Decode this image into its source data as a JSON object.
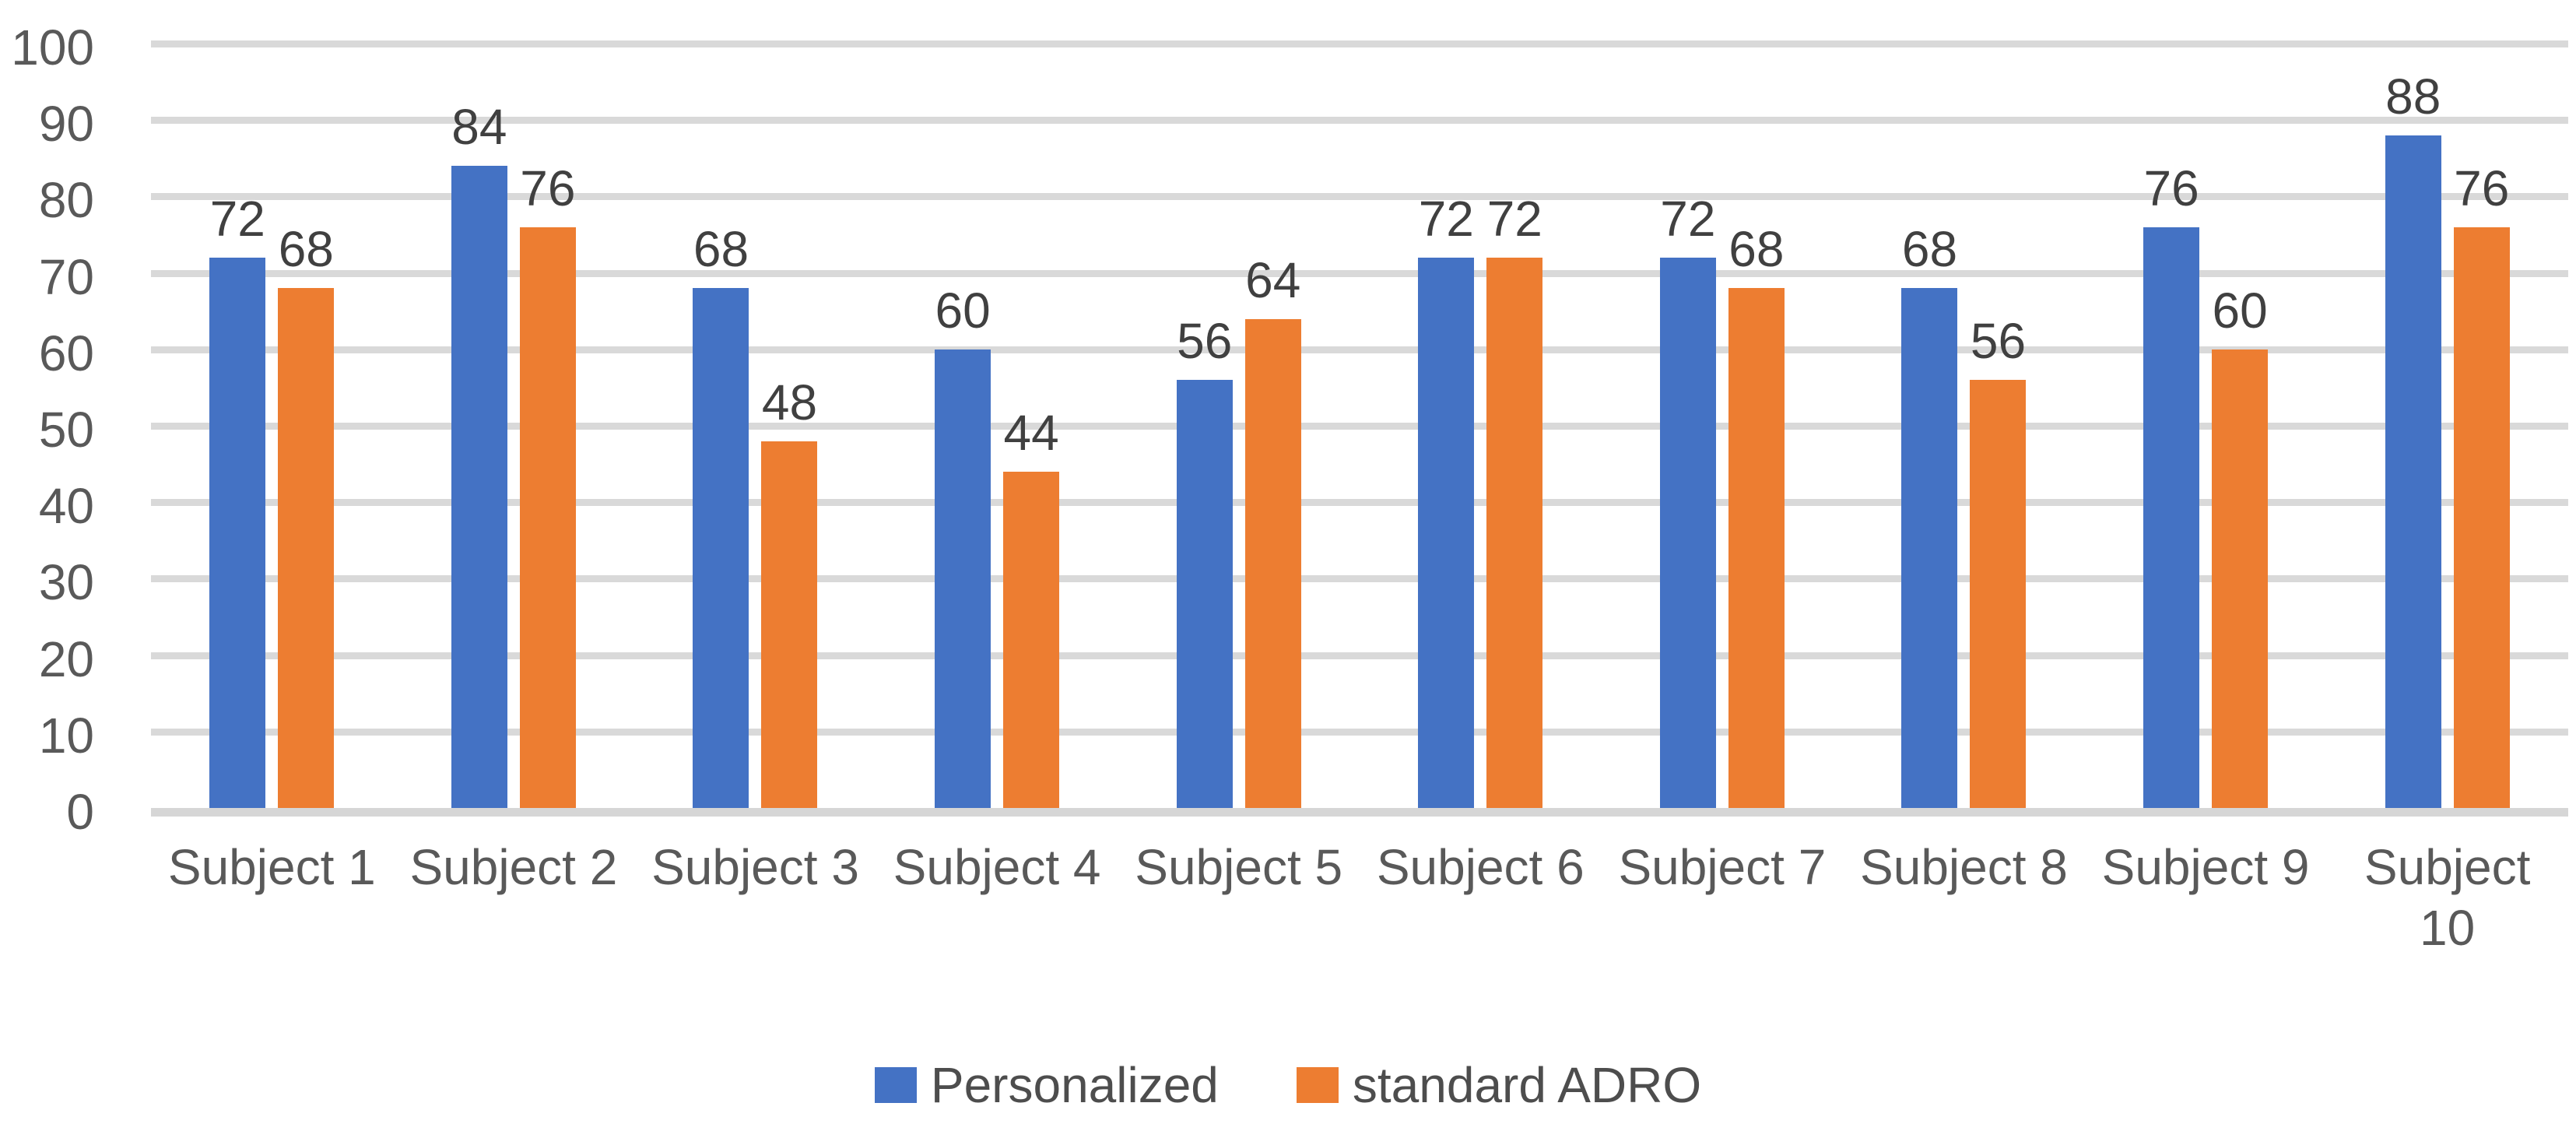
{
  "chart_data": {
    "type": "bar",
    "categories": [
      "Subject 1",
      "Subject 2",
      "Subject 3",
      "Subject 4",
      "Subject 5",
      "Subject 6",
      "Subject 7",
      "Subject 8",
      "Subject 9",
      "Subject 10"
    ],
    "series": [
      {
        "name": "Personalized",
        "color": "#4472C4",
        "values": [
          72,
          84,
          68,
          60,
          56,
          72,
          72,
          68,
          76,
          88
        ]
      },
      {
        "name": "standard ADRO",
        "color": "#ED7D31",
        "values": [
          68,
          76,
          48,
          44,
          64,
          72,
          68,
          56,
          60,
          76
        ]
      }
    ],
    "title": "",
    "xlabel": "",
    "ylabel": "",
    "ylim": [
      0,
      100
    ],
    "yticks": [
      0,
      10,
      20,
      30,
      40,
      50,
      60,
      70,
      80,
      90,
      100
    ],
    "grid": true,
    "data_labels": true,
    "legend_position": "bottom"
  },
  "colors": {
    "background": "#FFFFFF",
    "gridline": "#D9D9D9",
    "axis_line": "#D6D6D6",
    "tick_label": "#595959",
    "x_label": "#595959",
    "data_label": "#404040",
    "legend_label": "#4D4D4D"
  }
}
